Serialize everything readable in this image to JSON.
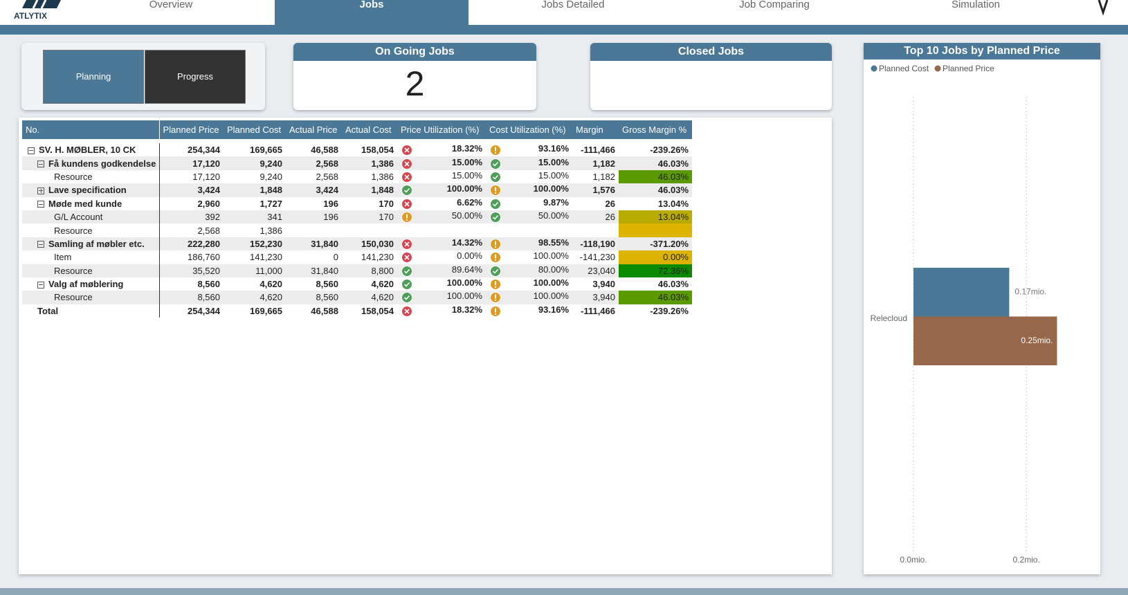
{
  "nav": {
    "logo": "ATLYTIX",
    "tabs": [
      "Overview",
      "Jobs",
      "Jobs Detailed",
      "Job Comparing",
      "Simulation"
    ]
  },
  "buttons": [
    "Planning",
    "Progress"
  ],
  "cards": {
    "on_going": {
      "title": "On Going Jobs",
      "value": 2
    },
    "closed": {
      "title": "Closed Jobs"
    }
  },
  "table": {
    "columns": [
      "No.",
      "Planned Price",
      "Planned Cost",
      "Actual Price",
      "Actual Cost",
      "Price Utilization (%)",
      "Cost Utilization (%)",
      "Margin",
      "Gross Margin %"
    ],
    "rows": [
      [
        "SV. H. MØBLER, 10 CK",
        "254,344",
        "169,665",
        "46,588",
        "158,054",
        "18.32%",
        "93.16%",
        "-111,466",
        "-239.26%"
      ],
      [
        "Få kundens godkendelse",
        "17,120",
        "9,240",
        "2,568",
        "1,386",
        "15.00%",
        "15.00%",
        "1,182",
        "46.03%"
      ],
      [
        "Resource",
        "17,120",
        "9,240",
        "2,568",
        "1,386",
        "15.00%",
        "15.00%",
        "1,182",
        "46.03%"
      ],
      [
        "Lave specification",
        "3,424",
        "1,848",
        "3,424",
        "1,848",
        "100.00%",
        "100.00%",
        "1,576",
        "46.03%"
      ],
      [
        "Møde med kunde",
        "2,960",
        "1,727",
        "196",
        "170",
        "6.62%",
        "9.87%",
        "26",
        "13.04%"
      ],
      [
        "G/L Account",
        "392",
        "341",
        "196",
        "170",
        "50.00%",
        "50.00%",
        "26",
        "13.04%"
      ],
      [
        "Resource",
        "2,568",
        "1,386",
        null,
        null,
        null,
        null,
        null,
        null
      ],
      [
        "Samling af møbler etc.",
        "222,280",
        "152,230",
        "31,840",
        "150,030",
        "14.32%",
        "98.55%",
        "-118,190",
        "-371.20%"
      ],
      [
        "Item",
        "186,760",
        "141,230",
        "0",
        "141,230",
        "0.00%",
        "100.00%",
        "-141,230",
        "0.00%"
      ],
      [
        "Resource",
        "35,520",
        "11,000",
        "31,840",
        "8,800",
        "89.64%",
        "80.00%",
        "23,040",
        "72.36%"
      ],
      [
        "Valg af møblering",
        "8,560",
        "4,620",
        "8,560",
        "4,620",
        "100.00%",
        "100.00%",
        "3,940",
        "46.03%"
      ],
      [
        "Resource",
        "8,560",
        "4,620",
        "8,560",
        "4,620",
        "100.00%",
        "100.00%",
        "3,940",
        "46.03%"
      ],
      [
        "Total",
        "254,344",
        "169,665",
        "46,588",
        "158,054",
        "18.32%",
        "93.16%",
        "-111,466",
        "-239.26%"
      ]
    ]
  },
  "chart_data": {
    "type": "bar",
    "orientation": "horizontal",
    "title": "Top 10 Jobs by Planned Price",
    "categories": [
      "Relecloud"
    ],
    "series": [
      {
        "name": "Planned Cost",
        "color": "#4a7896",
        "values": [
          169665
        ],
        "value_labels": [
          "0.17mio."
        ]
      },
      {
        "name": "Planned Price",
        "color": "#96674a",
        "values": [
          254344
        ],
        "value_labels": [
          "0.25mio."
        ]
      }
    ],
    "xlim": [
      0,
      320000
    ],
    "xticks": [
      {
        "value": 0,
        "label": "0.0mio."
      },
      {
        "value": 200000,
        "label": "0.2mio."
      }
    ],
    "grid": true,
    "legend": "top-left"
  }
}
